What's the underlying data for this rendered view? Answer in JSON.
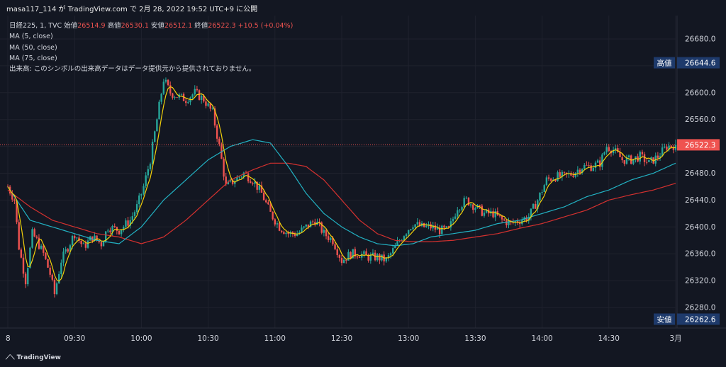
{
  "header": {
    "attribution": "masa117_114 が TradingView.com で 2月 28, 2022 19:52 UTC+9 に公開"
  },
  "legend": {
    "symbol": "日経225, 1, TVC",
    "open_label": "始値",
    "open_value": "26514.9",
    "high_label": "高値",
    "high_value": "26530.1",
    "low_label": "安値",
    "low_value": "26512.1",
    "close_label": "終値",
    "close_value": "26522.3",
    "change": "+10.5 (+0.04%)",
    "ma_lines": [
      "MA (5, close)",
      "MA (50, close)",
      "MA (75, close)"
    ],
    "volume_note": "出来高: このシンボルの出来高データはデータ提供元から提供されておりません。"
  },
  "colors": {
    "background": "#131722",
    "grid": "#1f222d",
    "up": "#26a69a",
    "down": "#ef5350",
    "ma5": "#f2d00b",
    "ma50": "#22b1c2",
    "ma75": "#d4312f",
    "label_box": "#1e3a6b"
  },
  "price_labels": [
    {
      "tag": "高値",
      "value": "26644.6",
      "price": 26644.6
    },
    {
      "tag": "",
      "value": "26522.3",
      "price": 26522.3
    },
    {
      "tag": "安値",
      "value": "26262.6",
      "price": 26262.6
    }
  ],
  "footer": {
    "brand": "TradingView"
  },
  "chart_data": {
    "type": "candlestick",
    "title": "日経225, 1, TVC",
    "yaxis": {
      "ticks": [
        "26680.0",
        "26640.0",
        "26600.0",
        "26560.0",
        "26520.0",
        "26480.0",
        "26440.0",
        "26400.0",
        "26360.0",
        "26320.0",
        "26280.0"
      ],
      "range": [
        26260,
        26705
      ]
    },
    "xaxis": {
      "ticks": [
        "8",
        "09:30",
        "10:00",
        "10:30",
        "11:00",
        "12:30",
        "13:00",
        "13:30",
        "14:00",
        "14:30",
        "3月"
      ],
      "tick_minutes": [
        0,
        30,
        60,
        90,
        120,
        150,
        180,
        210,
        240,
        270,
        300
      ]
    },
    "grid": true,
    "interval_minutes": 1,
    "price_path_points": [
      [
        0,
        26460
      ],
      [
        3,
        26440
      ],
      [
        5,
        26370
      ],
      [
        8,
        26320
      ],
      [
        11,
        26390
      ],
      [
        13,
        26380
      ],
      [
        16,
        26360
      ],
      [
        19,
        26330
      ],
      [
        21,
        26300
      ],
      [
        24,
        26350
      ],
      [
        27,
        26370
      ],
      [
        30,
        26390
      ],
      [
        34,
        26370
      ],
      [
        38,
        26385
      ],
      [
        42,
        26375
      ],
      [
        45,
        26400
      ],
      [
        50,
        26395
      ],
      [
        55,
        26410
      ],
      [
        58,
        26430
      ],
      [
        61,
        26460
      ],
      [
        64,
        26500
      ],
      [
        67,
        26560
      ],
      [
        70,
        26620
      ],
      [
        73,
        26600
      ],
      [
        76,
        26595
      ],
      [
        80,
        26590
      ],
      [
        84,
        26600
      ],
      [
        88,
        26590
      ],
      [
        92,
        26570
      ],
      [
        95,
        26520
      ],
      [
        98,
        26460
      ],
      [
        102,
        26470
      ],
      [
        106,
        26480
      ],
      [
        110,
        26470
      ],
      [
        114,
        26450
      ],
      [
        118,
        26420
      ],
      [
        122,
        26400
      ],
      [
        126,
        26390
      ],
      [
        130,
        26390
      ],
      [
        134,
        26400
      ],
      [
        138,
        26410
      ],
      [
        142,
        26390
      ],
      [
        146,
        26380
      ],
      [
        150,
        26350
      ],
      [
        154,
        26360
      ],
      [
        158,
        26360
      ],
      [
        162,
        26355
      ],
      [
        166,
        26355
      ],
      [
        170,
        26350
      ],
      [
        174,
        26370
      ],
      [
        178,
        26390
      ],
      [
        182,
        26405
      ],
      [
        186,
        26400
      ],
      [
        190,
        26400
      ],
      [
        194,
        26395
      ],
      [
        198,
        26395
      ],
      [
        202,
        26430
      ],
      [
        206,
        26440
      ],
      [
        210,
        26430
      ],
      [
        214,
        26420
      ],
      [
        218,
        26420
      ],
      [
        222,
        26410
      ],
      [
        226,
        26405
      ],
      [
        230,
        26410
      ],
      [
        234,
        26415
      ],
      [
        238,
        26440
      ],
      [
        242,
        26470
      ],
      [
        246,
        26475
      ],
      [
        250,
        26475
      ],
      [
        254,
        26480
      ],
      [
        258,
        26490
      ],
      [
        262,
        26490
      ],
      [
        266,
        26495
      ],
      [
        269,
        26520
      ],
      [
        272,
        26515
      ],
      [
        276,
        26500
      ],
      [
        280,
        26500
      ],
      [
        284,
        26505
      ],
      [
        288,
        26495
      ],
      [
        292,
        26505
      ],
      [
        296,
        26520
      ],
      [
        300,
        26522
      ]
    ],
    "ma50_points": [
      [
        0,
        26460
      ],
      [
        10,
        26410
      ],
      [
        20,
        26400
      ],
      [
        30,
        26390
      ],
      [
        40,
        26380
      ],
      [
        50,
        26375
      ],
      [
        60,
        26400
      ],
      [
        70,
        26440
      ],
      [
        80,
        26470
      ],
      [
        90,
        26500
      ],
      [
        100,
        26520
      ],
      [
        110,
        26530
      ],
      [
        118,
        26525
      ],
      [
        126,
        26490
      ],
      [
        134,
        26450
      ],
      [
        142,
        26420
      ],
      [
        150,
        26400
      ],
      [
        158,
        26385
      ],
      [
        166,
        26375
      ],
      [
        174,
        26372
      ],
      [
        182,
        26375
      ],
      [
        190,
        26385
      ],
      [
        200,
        26390
      ],
      [
        210,
        26395
      ],
      [
        220,
        26405
      ],
      [
        230,
        26410
      ],
      [
        240,
        26420
      ],
      [
        250,
        26430
      ],
      [
        260,
        26445
      ],
      [
        270,
        26455
      ],
      [
        280,
        26470
      ],
      [
        290,
        26480
      ],
      [
        300,
        26495
      ]
    ],
    "ma75_points": [
      [
        0,
        26455
      ],
      [
        10,
        26430
      ],
      [
        20,
        26410
      ],
      [
        30,
        26400
      ],
      [
        40,
        26390
      ],
      [
        50,
        26385
      ],
      [
        60,
        26375
      ],
      [
        70,
        26385
      ],
      [
        80,
        26410
      ],
      [
        90,
        26440
      ],
      [
        100,
        26470
      ],
      [
        110,
        26485
      ],
      [
        118,
        26495
      ],
      [
        126,
        26495
      ],
      [
        134,
        26490
      ],
      [
        142,
        26470
      ],
      [
        150,
        26440
      ],
      [
        158,
        26410
      ],
      [
        166,
        26390
      ],
      [
        174,
        26380
      ],
      [
        182,
        26378
      ],
      [
        190,
        26378
      ],
      [
        200,
        26380
      ],
      [
        210,
        26385
      ],
      [
        220,
        26390
      ],
      [
        230,
        26398
      ],
      [
        240,
        26405
      ],
      [
        250,
        26415
      ],
      [
        260,
        26425
      ],
      [
        270,
        26440
      ],
      [
        280,
        26448
      ],
      [
        290,
        26455
      ],
      [
        300,
        26465
      ]
    ]
  }
}
